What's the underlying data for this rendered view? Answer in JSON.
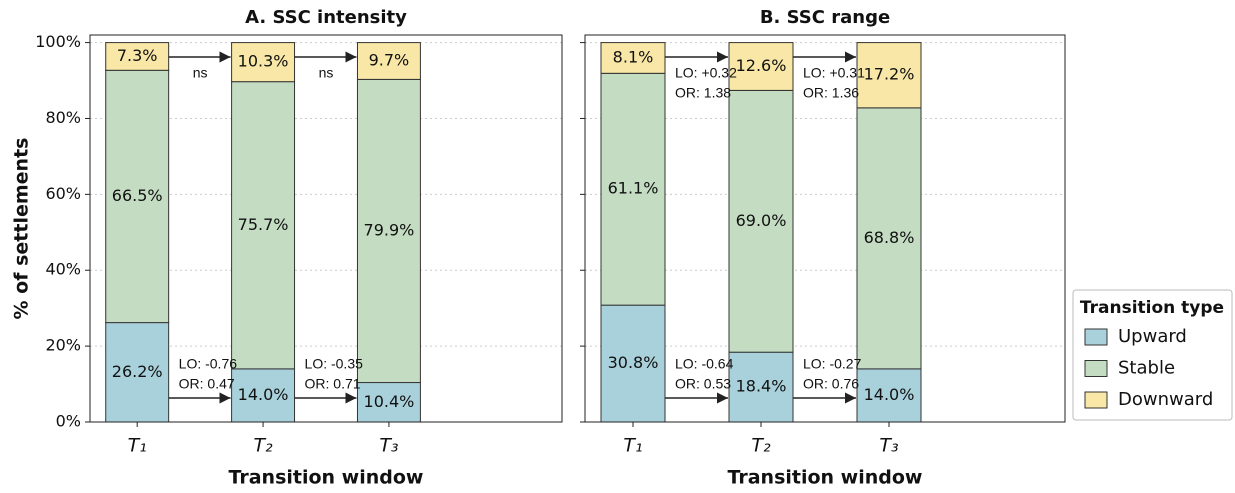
{
  "chart_data": [
    {
      "type": "stacked_bar",
      "title": "A. SSC intensity",
      "xlabel": "Transition window",
      "ylabel": "% of settlements",
      "categories": [
        "T₁",
        "T₂",
        "T₃"
      ],
      "series": [
        {
          "name": "Upward",
          "color": "#a9d1db",
          "values": [
            26.2,
            14.0,
            10.4
          ],
          "value_labels": [
            "26.2%",
            "14.0%",
            "10.4%"
          ]
        },
        {
          "name": "Stable",
          "color": "#c3dcc2",
          "values": [
            66.5,
            75.7,
            79.9
          ],
          "value_labels": [
            "66.5%",
            "75.7%",
            "79.9%"
          ]
        },
        {
          "name": "Downward",
          "color": "#f8e7a6",
          "values": [
            7.3,
            10.3,
            9.7
          ],
          "value_labels": [
            "7.3%",
            "10.3%",
            "9.7%"
          ]
        }
      ],
      "ylim": [
        0,
        102
      ],
      "yticks": [
        {
          "value": 0,
          "label": "0%"
        },
        {
          "value": 20,
          "label": "20%"
        },
        {
          "value": 40,
          "label": "40%"
        },
        {
          "value": 60,
          "label": "60%"
        },
        {
          "value": 80,
          "label": "80%"
        },
        {
          "value": 100,
          "label": "100%"
        }
      ],
      "yticklabels": true,
      "grid": true,
      "top_annotations": [
        [
          "ns"
        ],
        [
          "ns"
        ]
      ],
      "bottom_annotations": [
        [
          "LO: -0.76",
          "OR: 0.47"
        ],
        [
          "LO: -0.35",
          "OR: 0.71"
        ]
      ]
    },
    {
      "type": "stacked_bar",
      "title": "B. SSC range",
      "xlabel": "Transition window",
      "categories": [
        "T₁",
        "T₂",
        "T₃"
      ],
      "series": [
        {
          "name": "Upward",
          "color": "#a9d1db",
          "values": [
            30.8,
            18.4,
            14.0
          ],
          "value_labels": [
            "30.8%",
            "18.4%",
            "14.0%"
          ]
        },
        {
          "name": "Stable",
          "color": "#c3dcc2",
          "values": [
            61.1,
            69.0,
            68.8
          ],
          "value_labels": [
            "61.1%",
            "69.0%",
            "68.8%"
          ]
        },
        {
          "name": "Downward",
          "color": "#f8e7a6",
          "values": [
            8.1,
            12.6,
            17.2
          ],
          "value_labels": [
            "8.1%",
            "12.6%",
            "17.2%"
          ]
        }
      ],
      "ylim": [
        0,
        102
      ],
      "yticks": [
        0,
        20,
        40,
        60,
        80,
        100
      ],
      "yticklabels": false,
      "grid": true,
      "top_annotations": [
        [
          "LO: +0.32",
          "OR: 1.38"
        ],
        [
          "LO: +0.31",
          "OR: 1.36"
        ]
      ],
      "bottom_annotations": [
        [
          "LO: -0.64",
          "OR: 0.53"
        ],
        [
          "LO: -0.27",
          "OR: 0.76"
        ]
      ],
      "legend": "outside right",
      "legend_title": "Transition type"
    }
  ]
}
